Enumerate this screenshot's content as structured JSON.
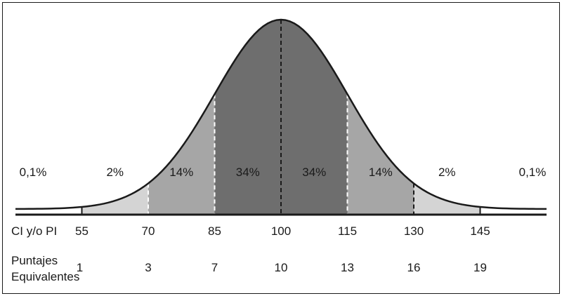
{
  "chart_data": {
    "type": "area",
    "title": "",
    "distribution": "normal",
    "mean": 100,
    "sd": 15,
    "xlim": [
      40,
      160
    ],
    "regions": [
      {
        "from": 40,
        "to": 55,
        "label": "0,1%",
        "color": "#ffffff"
      },
      {
        "from": 55,
        "to": 70,
        "label": "2%",
        "color": "#d4d4d4"
      },
      {
        "from": 70,
        "to": 85,
        "label": "14%",
        "color": "#a6a6a6"
      },
      {
        "from": 85,
        "to": 100,
        "label": "34%",
        "color": "#6e6e6e"
      },
      {
        "from": 100,
        "to": 115,
        "label": "34%",
        "color": "#6e6e6e"
      },
      {
        "from": 115,
        "to": 130,
        "label": "14%",
        "color": "#a6a6a6"
      },
      {
        "from": 130,
        "to": 145,
        "label": "2%",
        "color": "#d4d4d4"
      },
      {
        "from": 145,
        "to": 160,
        "label": "0,1%",
        "color": "#ffffff"
      }
    ],
    "boundaries": [
      {
        "x": 55,
        "style": "solid",
        "line_color": "#1a1a1a"
      },
      {
        "x": 70,
        "style": "dashed",
        "line_color": "#ffffff"
      },
      {
        "x": 85,
        "style": "dashed",
        "line_color": "#ffffff"
      },
      {
        "x": 100,
        "style": "dashed",
        "line_color": "#1a1a1a"
      },
      {
        "x": 115,
        "style": "dashed",
        "line_color": "#ffffff"
      },
      {
        "x": 130,
        "style": "dashed",
        "line_color": "#1a1a1a"
      },
      {
        "x": 145,
        "style": "solid",
        "line_color": "#1a1a1a"
      }
    ],
    "rows": [
      {
        "label": "CI y/o PI",
        "values": [
          "55",
          "70",
          "85",
          "100",
          "115",
          "130",
          "145"
        ]
      },
      {
        "label": "Puntajes\nEquivalentes",
        "label_lines": [
          "Puntajes",
          "Equivalentes"
        ],
        "values": [
          "1",
          "3",
          "7",
          "10",
          "13",
          "16",
          "19"
        ]
      }
    ],
    "colors": {
      "curve": "#1a1a1a",
      "axis": "#1a1a1a",
      "text": "#1a1a1a"
    }
  }
}
